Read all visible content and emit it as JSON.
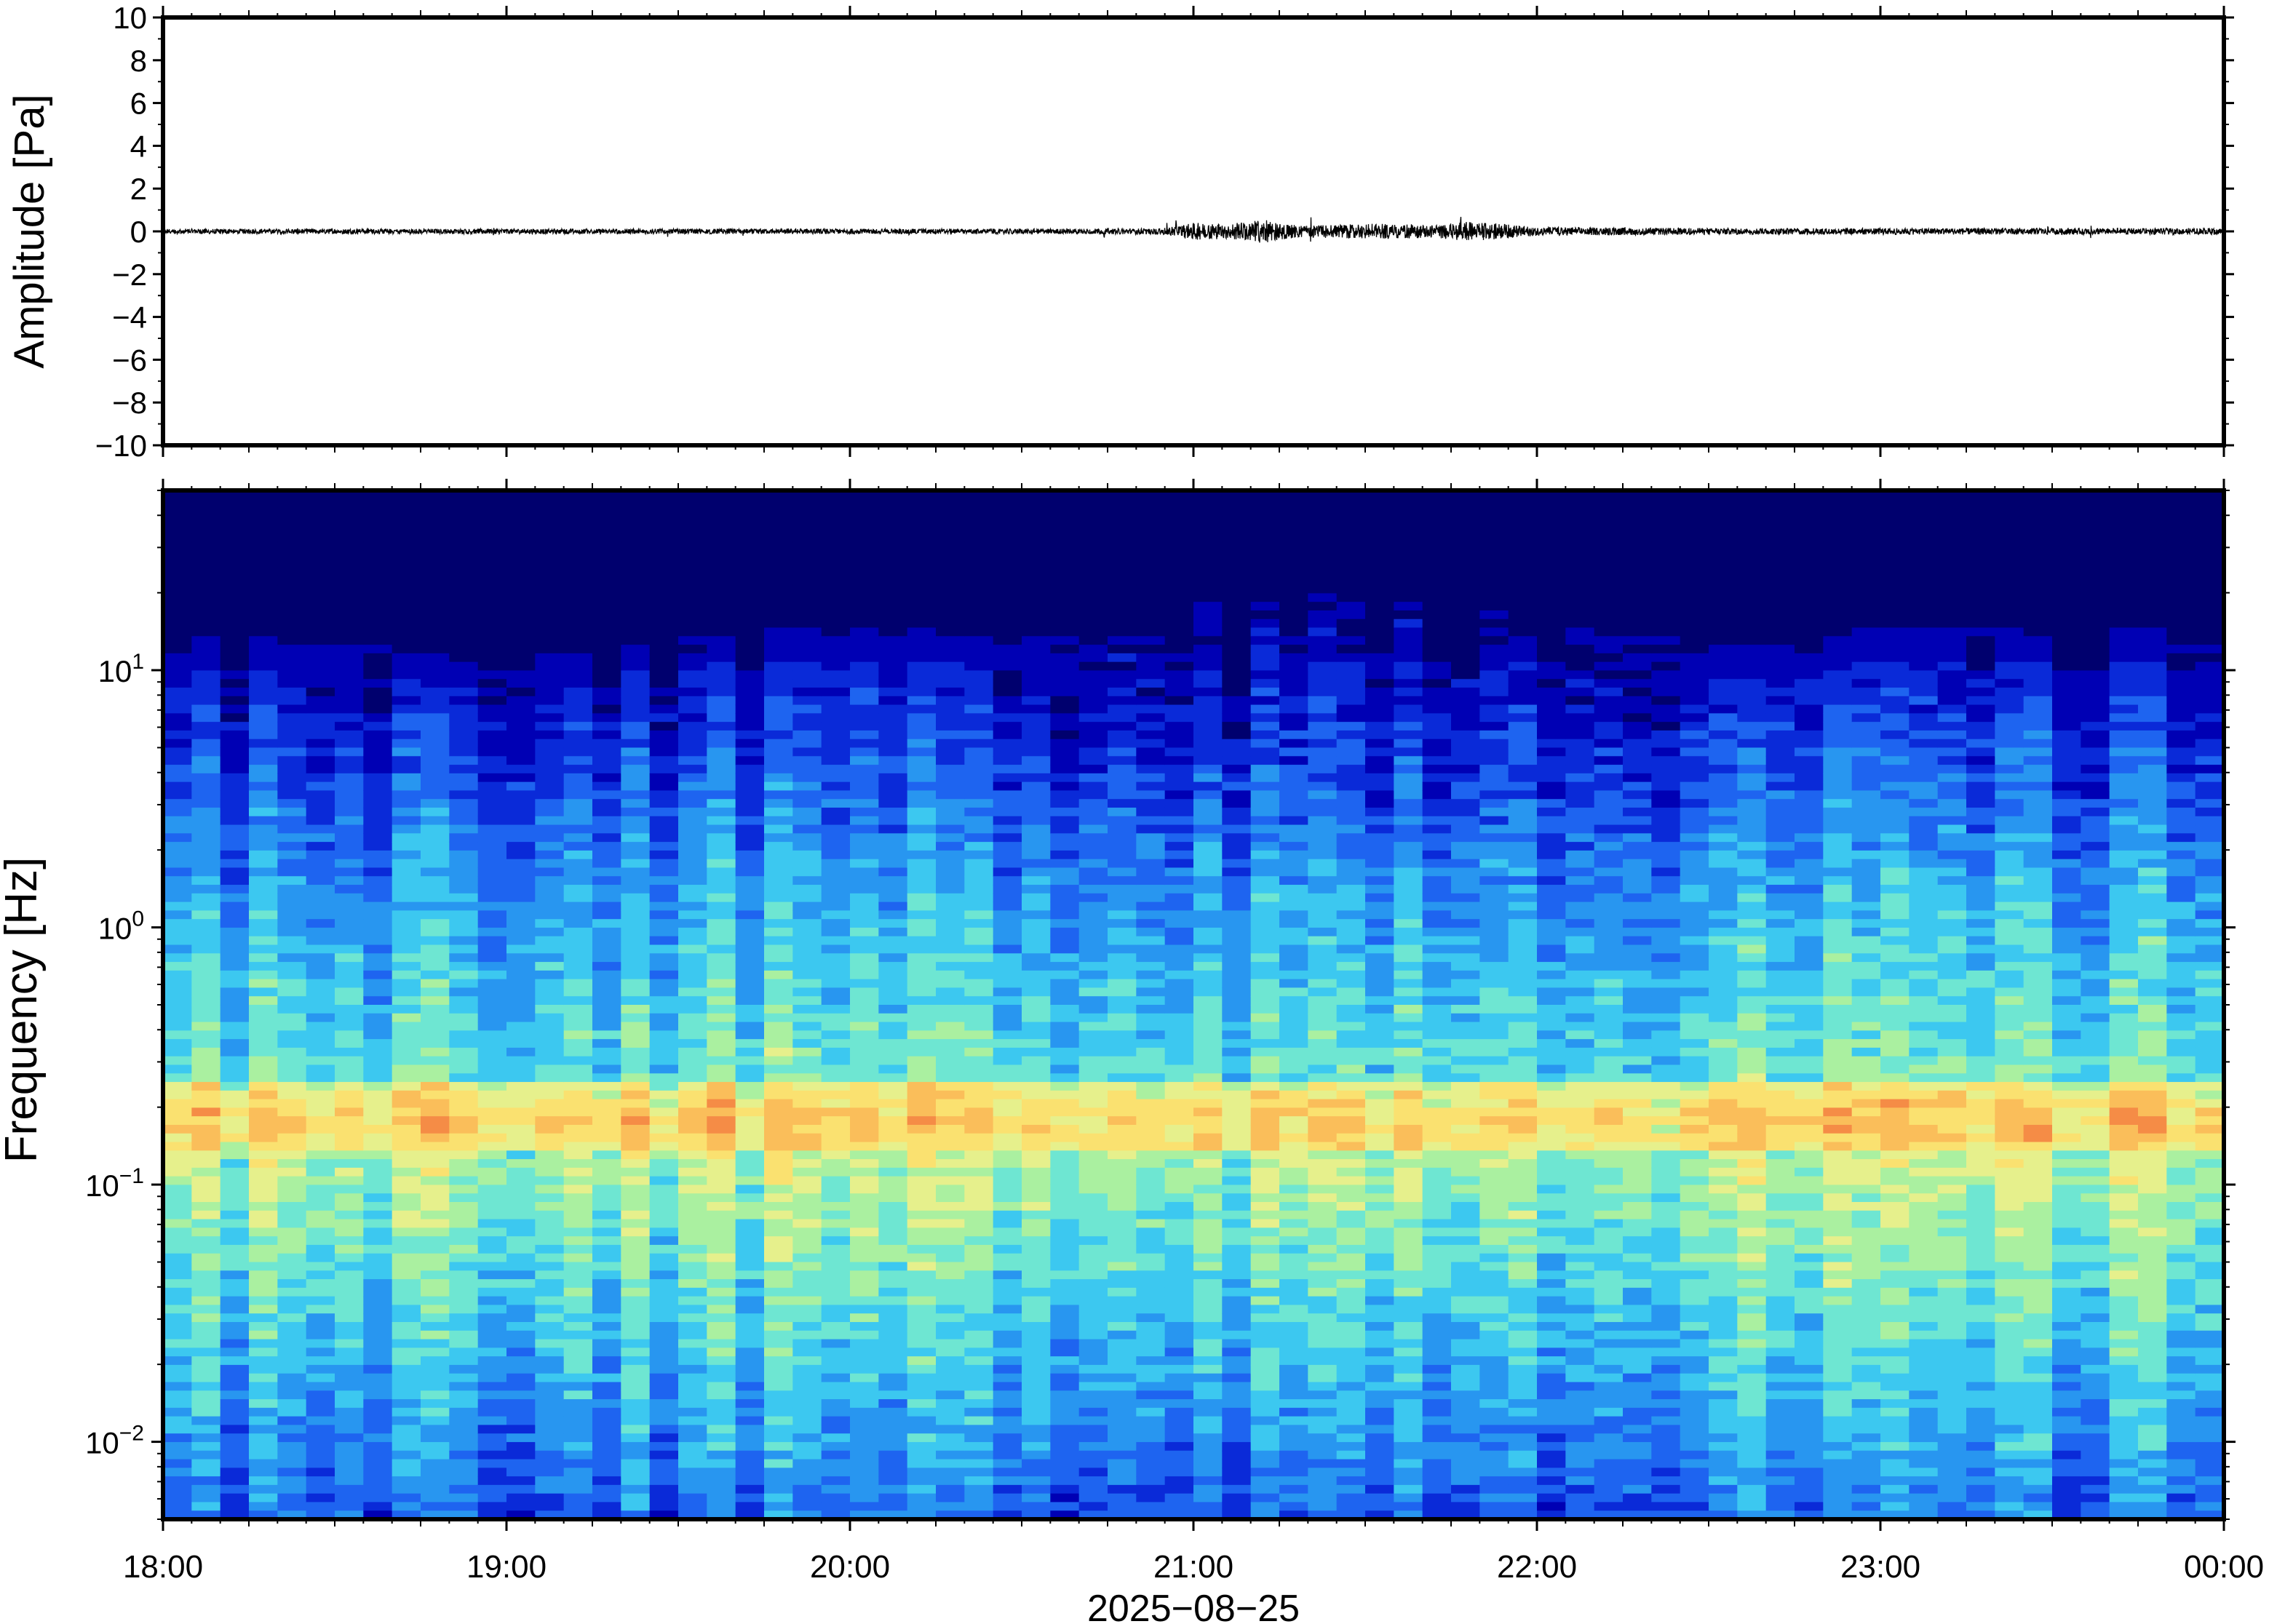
{
  "chart_data": [
    {
      "type": "line",
      "panel": "waveform",
      "ylabel": "Amplitude [Pa]",
      "ylim": [
        -10,
        10
      ],
      "ytick_values": [
        10,
        8,
        6,
        4,
        2,
        0,
        -2,
        -4,
        -6,
        -8,
        -10
      ],
      "ytick_labels": [
        "10",
        "8",
        "6",
        "4",
        "2",
        "0",
        "−2",
        "−4",
        "−6",
        "−8",
        "−10"
      ],
      "xlim": [
        "18:00",
        "00:00"
      ],
      "series": [
        {
          "color": "#000000",
          "x_hours": [
            18.0,
            18.5,
            19.0,
            19.5,
            20.0,
            20.5,
            20.9,
            21.0,
            21.1,
            21.2,
            21.3,
            21.4,
            21.5,
            21.6,
            21.7,
            21.8,
            21.9,
            22.0,
            22.5,
            23.0,
            23.5,
            24.0
          ],
          "envelope_pa": [
            0.12,
            0.12,
            0.12,
            0.12,
            0.12,
            0.12,
            0.14,
            0.4,
            0.35,
            0.55,
            0.3,
            0.3,
            0.35,
            0.35,
            0.3,
            0.45,
            0.35,
            0.2,
            0.15,
            0.15,
            0.15,
            0.15
          ]
        }
      ]
    },
    {
      "type": "heatmap",
      "panel": "spectrogram",
      "ylabel": "Frequency [Hz]",
      "yscale": "log",
      "ylim_hz": [
        0.005,
        50
      ],
      "ytick_labels": [
        {
          "value": 0.01,
          "base": "10",
          "exp": "−2"
        },
        {
          "value": 0.1,
          "base": "10",
          "exp": "−1"
        },
        {
          "value": 1,
          "base": "10",
          "exp": "0"
        },
        {
          "value": 10,
          "base": "10",
          "exp": "1"
        }
      ],
      "xlabel": "2025−08−25",
      "xtick_labels": [
        "18:00",
        "19:00",
        "20:00",
        "21:00",
        "22:00",
        "23:00",
        "00:00"
      ],
      "colormap": [
        "#00006e",
        "#0000b4",
        "#0a2ad8",
        "#1e64f0",
        "#2896f0",
        "#3cc8f0",
        "#6ee6d2",
        "#aaf0a0",
        "#e6f08c",
        "#fae170",
        "#fabe5a",
        "#f58c46"
      ],
      "noise_ceiling_hz_by_hour": [
        [
          18.0,
          14
        ],
        [
          18.7,
          12
        ],
        [
          19.0,
          11
        ],
        [
          19.6,
          14
        ],
        [
          20.0,
          15
        ],
        [
          20.5,
          13
        ],
        [
          21.0,
          18
        ],
        [
          21.5,
          20
        ],
        [
          21.8,
          22
        ],
        [
          22.0,
          16
        ],
        [
          22.4,
          13
        ],
        [
          22.8,
          12
        ],
        [
          23.0,
          15
        ],
        [
          23.5,
          14
        ],
        [
          24.0,
          15
        ]
      ],
      "microseism_band_hz": [
        0.14,
        0.25
      ],
      "microseism_peak_hz": 0.18
    }
  ]
}
